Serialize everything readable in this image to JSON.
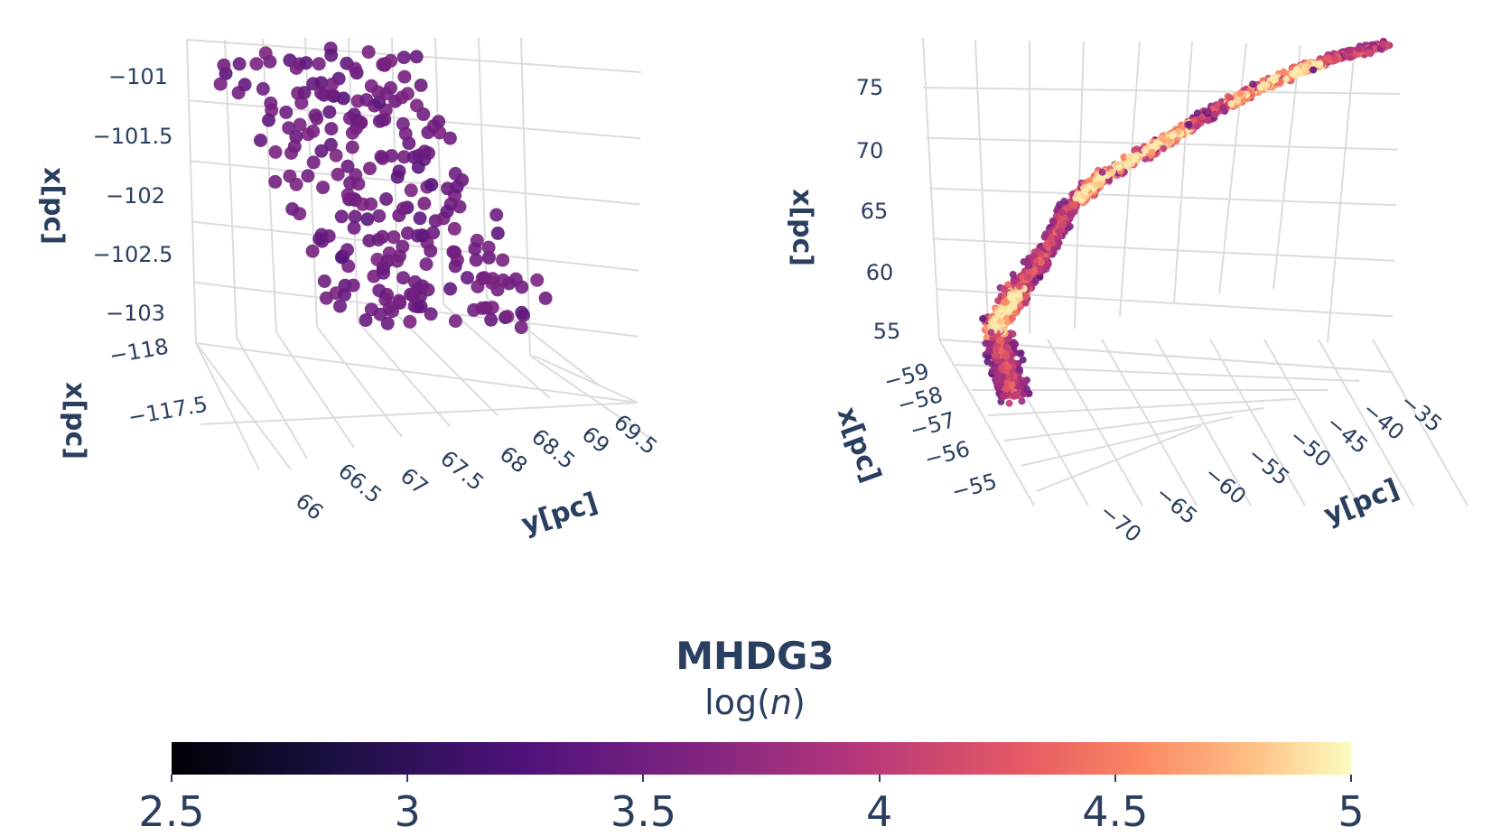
{
  "colors": {
    "colormap": [
      "#000004",
      "#1c1044",
      "#4f127b",
      "#812581",
      "#b5367a",
      "#e55964",
      "#fb8761",
      "#fec287",
      "#fcfdbf"
    ],
    "axis_text": "#2a3f5f",
    "grid": "#dcdcdc"
  },
  "chart_data": [
    {
      "type": "scatter",
      "subtype": "3d-scatter",
      "axes": {
        "z_label": "x[pc]",
        "x_label": "x[pc]",
        "y_label": "y[pc]",
        "z_ticks": [
          "−101",
          "−101.5",
          "−102",
          "−102.5",
          "−103"
        ],
        "x_ticks": [
          "−118",
          "−117.5"
        ],
        "y_ticks": [
          "66",
          "66.5",
          "67",
          "67.5",
          "68",
          "68.5",
          "69",
          "69.5"
        ],
        "z_range": [
          -103.2,
          -100.8
        ],
        "y_range": [
          65.8,
          69.7
        ]
      },
      "color_scale": "log(n)",
      "value_range": [
        3.0,
        3.4
      ],
      "point_count": 250
    },
    {
      "type": "scatter",
      "subtype": "3d-scatter",
      "axes": {
        "z_label": "x[pc]",
        "x_label": "x[pc]",
        "y_label": "y[pc]",
        "z_ticks": [
          "75",
          "70",
          "65",
          "60",
          "55"
        ],
        "x_ticks": [
          "−59",
          "−58",
          "−57",
          "−56",
          "−55"
        ],
        "y_ticks": [
          "−70",
          "−65",
          "−60",
          "−55",
          "−50",
          "−45",
          "−40",
          "−35"
        ],
        "z_range": [
          52,
          78
        ],
        "y_range": [
          -72,
          -33
        ]
      },
      "color_scale": "log(n)",
      "value_range": [
        3.0,
        4.9
      ],
      "point_count": 2200
    }
  ],
  "colorbar": {
    "title": "MHDG3",
    "subtitle": "log(n)",
    "range": [
      2.5,
      5
    ],
    "ticks": [
      "2.5",
      "3",
      "3.5",
      "4",
      "4.5",
      "5"
    ]
  }
}
